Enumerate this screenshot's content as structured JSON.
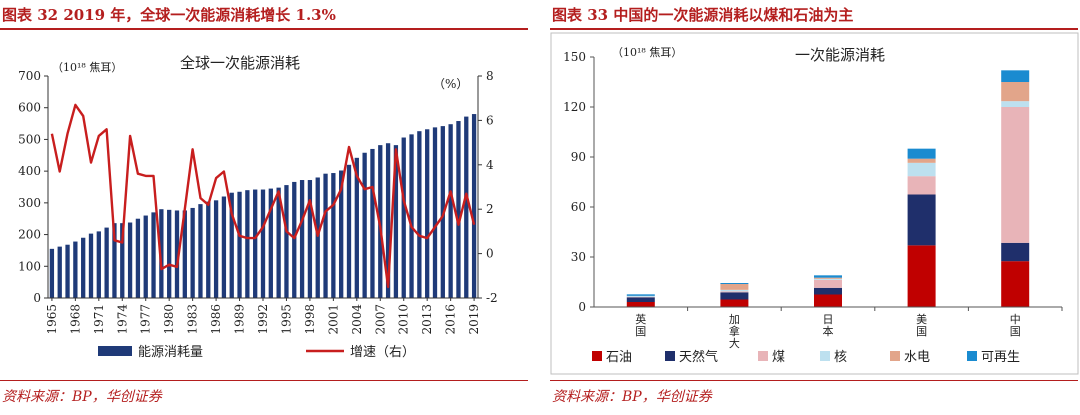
{
  "left": {
    "header": "图表 32   2019 年，全球一次能源消耗增长 1.3%",
    "source": "资料来源：BP，华创证券",
    "chart_data": {
      "type": "bar",
      "title": "全球一次能源消耗",
      "unit_left": "（10¹⁸ 焦耳）",
      "unit_right": "（%）",
      "ylim_left": [
        0,
        700
      ],
      "yticks_left": [
        "0",
        "100",
        "200",
        "300",
        "400",
        "500",
        "600",
        "700"
      ],
      "ylim_right": [
        -2,
        8
      ],
      "yticks_right": [
        "-2",
        "0",
        "2",
        "4",
        "6",
        "8"
      ],
      "x": [
        1965,
        1966,
        1967,
        1968,
        1969,
        1970,
        1971,
        1972,
        1973,
        1974,
        1975,
        1976,
        1977,
        1978,
        1979,
        1980,
        1981,
        1982,
        1983,
        1984,
        1985,
        1986,
        1987,
        1988,
        1989,
        1990,
        1991,
        1992,
        1993,
        1994,
        1995,
        1996,
        1997,
        1998,
        1999,
        2000,
        2001,
        2002,
        2003,
        2004,
        2005,
        2006,
        2007,
        2008,
        2009,
        2010,
        2011,
        2012,
        2013,
        2014,
        2015,
        2016,
        2017,
        2018,
        2019
      ],
      "xtick_labels": [
        "1965",
        "1968",
        "1971",
        "1974",
        "1977",
        "1980",
        "1983",
        "1986",
        "1989",
        "1992",
        "1995",
        "1998",
        "2001",
        "2004",
        "2007",
        "2010",
        "2013",
        "2016",
        "2019"
      ],
      "series": [
        {
          "name": "能源消耗量",
          "color": "#1f3a78",
          "axis": "left",
          "values": [
            155,
            162,
            168,
            178,
            190,
            203,
            210,
            222,
            236,
            236,
            238,
            250,
            260,
            270,
            280,
            278,
            276,
            276,
            284,
            296,
            304,
            308,
            320,
            332,
            335,
            340,
            342,
            342,
            345,
            348,
            356,
            366,
            372,
            372,
            380,
            392,
            394,
            402,
            420,
            442,
            458,
            470,
            482,
            488,
            482,
            506,
            516,
            526,
            532,
            538,
            542,
            548,
            558,
            572,
            580
          ]
        },
        {
          "name": "增速（右）",
          "color": "#c81e1e",
          "axis": "right",
          "type": "line",
          "values": [
            5.4,
            3.7,
            5.4,
            6.7,
            6.2,
            4.1,
            5.3,
            5.6,
            0.6,
            0.5,
            5.3,
            3.6,
            3.5,
            3.5,
            -0.7,
            -0.5,
            -0.6,
            2.0,
            4.7,
            2.5,
            2.2,
            3.4,
            3.7,
            1.8,
            0.8,
            0.7,
            0.7,
            1.2,
            2.0,
            2.8,
            1.0,
            0.7,
            1.5,
            2.4,
            0.8,
            1.9,
            2.2,
            2.9,
            4.8,
            3.5,
            2.9,
            3.0,
            1.2,
            -1.5,
            4.7,
            2.4,
            1.2,
            0.8,
            0.7,
            1.2,
            1.7,
            2.8,
            1.3,
            2.7,
            1.3
          ]
        }
      ]
    }
  },
  "right": {
    "header": "图表 33   中国的一次能源消耗以煤和石油为主",
    "source": "资料来源：BP，华创证券",
    "chart_data": {
      "type": "bar",
      "stacked": true,
      "title": "一次能源消耗",
      "unit_left": "（10¹⁸ 焦耳）",
      "ylim": [
        0,
        150
      ],
      "yticks": [
        "0",
        "30",
        "60",
        "90",
        "120",
        "150"
      ],
      "categories": [
        "英国",
        "加拿大",
        "日本",
        "美国",
        "中国"
      ],
      "series": [
        {
          "name": "石油",
          "color": "#c00000",
          "values": [
            3.0,
            4.5,
            7.5,
            37.0,
            27.5
          ]
        },
        {
          "name": "天然气",
          "color": "#1f2f6b",
          "values": [
            2.8,
            4.3,
            4.0,
            30.5,
            11.0
          ]
        },
        {
          "name": "煤",
          "color": "#e8b4b8",
          "values": [
            0.3,
            0.6,
            4.8,
            11.0,
            81.5
          ]
        },
        {
          "name": "核",
          "color": "#bde0ef",
          "values": [
            0.5,
            0.9,
            0.6,
            8.0,
            3.5
          ]
        },
        {
          "name": "水电",
          "color": "#e2a58a",
          "values": [
            0.1,
            3.5,
            0.7,
            2.5,
            11.5
          ]
        },
        {
          "name": "可再生",
          "color": "#1a8bd0",
          "values": [
            0.9,
            0.6,
            1.4,
            6.0,
            7.0
          ]
        }
      ]
    }
  }
}
